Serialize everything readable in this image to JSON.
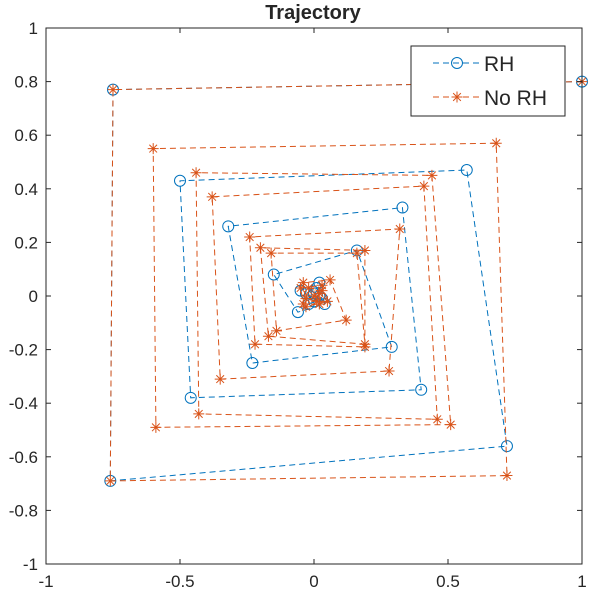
{
  "chart_data": {
    "type": "line",
    "title": "Trajectory",
    "xlabel": "",
    "ylabel": "",
    "xlim": [
      -1,
      1
    ],
    "ylim": [
      -1,
      1
    ],
    "xticks": [
      -1,
      -0.5,
      0,
      0.5,
      1
    ],
    "xtick_labels": [
      "-1",
      "-0.5",
      "0",
      "0.5",
      "1"
    ],
    "yticks": [
      -1,
      -0.8,
      -0.6,
      -0.4,
      -0.2,
      0,
      0.2,
      0.4,
      0.6,
      0.8,
      1
    ],
    "ytick_labels": [
      "-1",
      "-0.8",
      "-0.6",
      "-0.4",
      "-0.2",
      "0",
      "0.2",
      "0.4",
      "0.6",
      "0.8",
      "1"
    ],
    "grid": false,
    "legend_position": "top-right",
    "series": [
      {
        "name": "RH",
        "color": "#0072BD",
        "marker": "circle",
        "line_style": "dashed",
        "points": [
          [
            1.0,
            0.8
          ],
          [
            -0.75,
            0.77
          ],
          [
            -0.76,
            -0.69
          ],
          [
            0.72,
            -0.56
          ],
          [
            0.57,
            0.47
          ],
          [
            -0.5,
            0.43
          ],
          [
            -0.46,
            -0.38
          ],
          [
            0.4,
            -0.35
          ],
          [
            0.33,
            0.33
          ],
          [
            -0.32,
            0.26
          ],
          [
            -0.23,
            -0.25
          ],
          [
            0.29,
            -0.19
          ],
          [
            0.16,
            0.17
          ],
          [
            -0.15,
            0.08
          ],
          [
            -0.06,
            -0.06
          ],
          [
            0.04,
            -0.03
          ],
          [
            0.02,
            0.05
          ],
          [
            -0.05,
            0.02
          ],
          [
            -0.02,
            -0.03
          ],
          [
            0.03,
            -0.01
          ],
          [
            0.01,
            0.03
          ],
          [
            -0.03,
            0.01
          ],
          [
            0.0,
            -0.02
          ],
          [
            0.02,
            0.0
          ],
          [
            0.0,
            0.01
          ]
        ]
      },
      {
        "name": "No RH",
        "color": "#D95319",
        "marker": "asterisk",
        "line_style": "dashed",
        "points": [
          [
            1.0,
            0.8
          ],
          [
            -0.75,
            0.77
          ],
          [
            -0.76,
            -0.69
          ],
          [
            0.72,
            -0.67
          ],
          [
            0.68,
            0.57
          ],
          [
            -0.6,
            0.55
          ],
          [
            -0.59,
            -0.49
          ],
          [
            0.51,
            -0.48
          ],
          [
            0.44,
            0.45
          ],
          [
            -0.44,
            0.46
          ],
          [
            -0.43,
            -0.44
          ],
          [
            0.46,
            -0.46
          ],
          [
            0.41,
            0.41
          ],
          [
            -0.38,
            0.37
          ],
          [
            -0.35,
            -0.31
          ],
          [
            0.28,
            -0.28
          ],
          [
            0.32,
            0.25
          ],
          [
            -0.24,
            0.22
          ],
          [
            -0.22,
            -0.18
          ],
          [
            0.19,
            -0.19
          ],
          [
            0.19,
            0.17
          ],
          [
            -0.2,
            0.18
          ],
          [
            -0.17,
            -0.15
          ],
          [
            0.19,
            -0.18
          ],
          [
            0.16,
            0.16
          ],
          [
            -0.16,
            0.16
          ],
          [
            -0.14,
            -0.13
          ],
          [
            0.12,
            -0.09
          ],
          [
            0.06,
            0.06
          ],
          [
            -0.04,
            0.05
          ],
          [
            -0.03,
            -0.04
          ],
          [
            0.05,
            -0.02
          ],
          [
            0.03,
            0.04
          ],
          [
            -0.05,
            0.03
          ],
          [
            -0.04,
            -0.03
          ],
          [
            0.02,
            -0.03
          ],
          [
            0.03,
            0.02
          ],
          [
            -0.02,
            0.03
          ],
          [
            -0.03,
            -0.01
          ],
          [
            0.01,
            -0.02
          ],
          [
            0.02,
            0.01
          ],
          [
            0.0,
            0.0
          ]
        ]
      }
    ]
  }
}
